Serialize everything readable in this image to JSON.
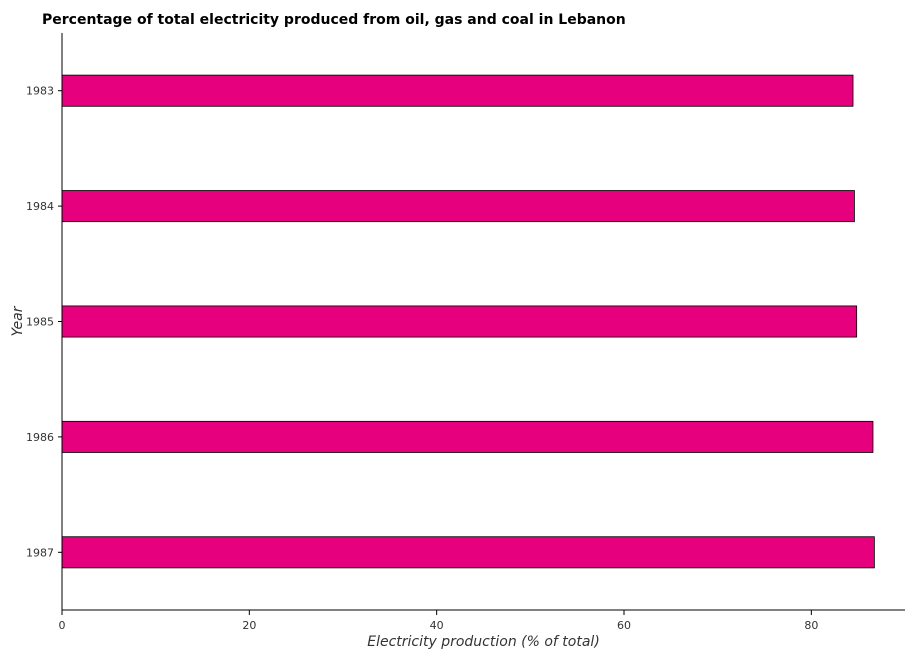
{
  "chart_data": {
    "type": "bar",
    "orientation": "horizontal",
    "title": "Percentage of total electricity produced from oil, gas and coal in Lebanon",
    "xlabel": "Electricity production (% of total)",
    "ylabel": "Year",
    "categories": [
      "1983",
      "1984",
      "1985",
      "1986",
      "1987"
    ],
    "values": [
      84.45,
      84.6,
      84.84,
      86.58,
      86.73
    ],
    "xlim": [
      0,
      90
    ],
    "xticks": [
      0,
      20,
      40,
      60,
      80
    ],
    "grid": false,
    "legend": "none",
    "bar_color": "#e6007e"
  }
}
